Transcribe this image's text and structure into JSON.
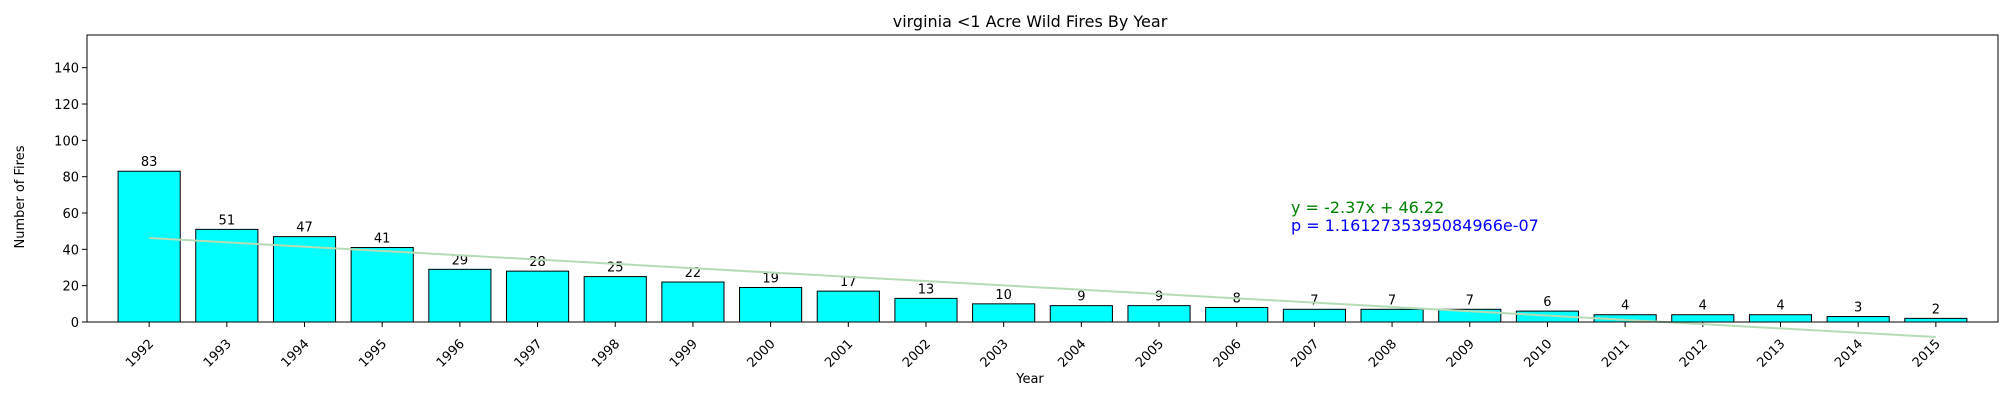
{
  "chart_data": {
    "type": "bar",
    "title": "virginia <1 Acre Wild Fires By Year",
    "xlabel": "Year",
    "ylabel": "Number of Fires",
    "categories": [
      "1992",
      "1993",
      "1994",
      "1995",
      "1996",
      "1997",
      "1998",
      "1999",
      "2000",
      "2001",
      "2002",
      "2003",
      "2004",
      "2005",
      "2006",
      "2007",
      "2008",
      "2009",
      "2010",
      "2011",
      "2012",
      "2013",
      "2014",
      "2015"
    ],
    "values": [
      83,
      51,
      47,
      41,
      29,
      28,
      25,
      22,
      19,
      17,
      13,
      10,
      9,
      9,
      8,
      7,
      7,
      7,
      6,
      4,
      4,
      4,
      3,
      2
    ],
    "ylim": [
      0,
      158
    ],
    "yticks": [
      0,
      20,
      40,
      60,
      80,
      100,
      120,
      140
    ],
    "grid": false,
    "trendline": {
      "slope": -2.37,
      "intercept": 46.22,
      "color": "#b5dcb5"
    },
    "annotations": {
      "equation": "y = -2.37x + 46.22",
      "equation_color": "#008000",
      "pvalue": "p = 1.1612735395084966e-07",
      "pvalue_color": "#0000ff"
    },
    "bar_color": "#00ffff",
    "bar_edge_color": "#000000"
  }
}
